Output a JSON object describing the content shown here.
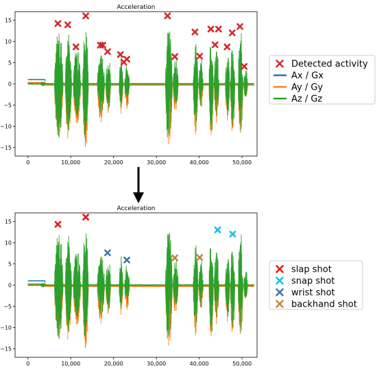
{
  "colors": {
    "ax": "#1f77b4",
    "ay": "#ff7f0e",
    "az": "#2ca02c",
    "detected": "#d62728",
    "slap": "#e5191c",
    "snap": "#14c2e6",
    "wrist": "#3a78a8",
    "backhand": "#c0833e"
  },
  "chart_data": [
    {
      "type": "line",
      "title": "Acceleration",
      "xlim": [
        -3000,
        53500
      ],
      "ylim": [
        -17,
        17
      ],
      "xticks": [
        0,
        10000,
        20000,
        30000,
        40000,
        50000
      ],
      "xtick_labels": [
        "0",
        "10,000",
        "20,000",
        "30,000",
        "40,000",
        "50,000"
      ],
      "yticks": [
        15,
        10,
        5,
        0,
        -5,
        -10,
        -15
      ],
      "ytick_labels": [
        "15",
        "10",
        "5",
        "0",
        "−5",
        "−10",
        "−15"
      ],
      "bursts": [
        {
          "start": 3000,
          "end": 4000,
          "amp": 0.6
        },
        {
          "start": 6200,
          "end": 8200,
          "amp": 14.0
        },
        {
          "start": 8700,
          "end": 10200,
          "amp": 13.5
        },
        {
          "start": 10600,
          "end": 12300,
          "amp": 10.0
        },
        {
          "start": 12800,
          "end": 14100,
          "amp": 16.0
        },
        {
          "start": 16200,
          "end": 17900,
          "amp": 9.0
        },
        {
          "start": 18200,
          "end": 19300,
          "amp": 7.5
        },
        {
          "start": 21300,
          "end": 22200,
          "amp": 7.0
        },
        {
          "start": 22600,
          "end": 23700,
          "amp": 5.5
        },
        {
          "start": 32100,
          "end": 33700,
          "amp": 16.0
        },
        {
          "start": 33900,
          "end": 35100,
          "amp": 6.5
        },
        {
          "start": 38600,
          "end": 39700,
          "amp": 12.0
        },
        {
          "start": 39900,
          "end": 40900,
          "amp": 6.5
        },
        {
          "start": 42300,
          "end": 43300,
          "amp": 13.0
        },
        {
          "start": 43500,
          "end": 44600,
          "amp": 9.0
        },
        {
          "start": 46100,
          "end": 47100,
          "amp": 9.0
        },
        {
          "start": 47300,
          "end": 48300,
          "amp": 12.0
        },
        {
          "start": 49100,
          "end": 50200,
          "amp": 13.5
        },
        {
          "start": 50400,
          "end": 51300,
          "amp": 4.0
        }
      ],
      "series": [
        {
          "name": "Ax / Gx",
          "color_key": "ax",
          "baseline": 1.0,
          "baseline_until": 4000,
          "after": 0.0,
          "scale": 0.08
        },
        {
          "name": "Ay / Gy",
          "color_key": "ay",
          "baseline": 0.3,
          "baseline_until": 4000,
          "after": -0.3,
          "scale": 0.35
        },
        {
          "name": "Az / Gz",
          "color_key": "az",
          "baseline": 0.0,
          "baseline_until": 0,
          "after": 0.0,
          "scale": 1.0
        }
      ],
      "markers": [
        {
          "label": "Detected activity",
          "color_key": "detected",
          "points": [
            [
              7000,
              14.2
            ],
            [
              9300,
              13.9
            ],
            [
              11200,
              8.7
            ],
            [
              13500,
              16.0
            ],
            [
              16900,
              9.1
            ],
            [
              17500,
              9.1
            ],
            [
              18600,
              7.6
            ],
            [
              21600,
              6.9
            ],
            [
              22400,
              5.1
            ],
            [
              23100,
              5.8
            ],
            [
              32600,
              16.0
            ],
            [
              34300,
              6.4
            ],
            [
              39000,
              12.2
            ],
            [
              40100,
              6.5
            ],
            [
              42700,
              12.9
            ],
            [
              43700,
              9.2
            ],
            [
              44500,
              12.9
            ],
            [
              46500,
              8.7
            ],
            [
              47700,
              12.0
            ],
            [
              49500,
              13.5
            ],
            [
              50500,
              4.1
            ]
          ]
        }
      ],
      "legend": {
        "position": "right",
        "entries": [
          {
            "label": "Detected activity",
            "kind": "marker",
            "color_key": "detected"
          },
          {
            "label": "Ax / Gx",
            "kind": "line",
            "color_key": "ax"
          },
          {
            "label": "Ay / Gy",
            "kind": "line",
            "color_key": "ay"
          },
          {
            "label": "Az / Gz",
            "kind": "line",
            "color_key": "az"
          }
        ]
      }
    },
    {
      "type": "line",
      "title": "Acceleration",
      "xlim": [
        -3000,
        53500
      ],
      "ylim": [
        -17,
        17
      ],
      "xticks": [
        0,
        10000,
        20000,
        30000,
        40000,
        50000
      ],
      "xtick_labels": [
        "0",
        "10,000",
        "20,000",
        "30,000",
        "40,000",
        "50,000"
      ],
      "yticks": [
        15,
        10,
        5,
        0,
        -5,
        -10,
        -15
      ],
      "ytick_labels": [
        "15",
        "10",
        "5",
        "0",
        "−5",
        "−10",
        "−15"
      ],
      "same_signals_as_first": true,
      "markers": [
        {
          "label": "slap shot",
          "color_key": "slap",
          "points": [
            [
              7000,
              14.3
            ],
            [
              13500,
              16.0
            ]
          ]
        },
        {
          "label": "snap shot",
          "color_key": "snap",
          "points": [
            [
              44300,
              13.0
            ],
            [
              47800,
              12.0
            ]
          ]
        },
        {
          "label": "wrist shot",
          "color_key": "wrist",
          "points": [
            [
              18600,
              7.6
            ],
            [
              23100,
              5.9
            ]
          ]
        },
        {
          "label": "backhand shot",
          "color_key": "backhand",
          "points": [
            [
              34300,
              6.4
            ],
            [
              40100,
              6.5
            ]
          ]
        }
      ],
      "legend": {
        "position": "right",
        "entries": [
          {
            "label": "slap shot",
            "kind": "marker",
            "color_key": "slap"
          },
          {
            "label": "snap shot",
            "kind": "marker",
            "color_key": "snap"
          },
          {
            "label": "wrist shot",
            "kind": "marker",
            "color_key": "wrist"
          },
          {
            "label": "backhand shot",
            "kind": "marker",
            "color_key": "backhand"
          }
        ]
      }
    }
  ]
}
